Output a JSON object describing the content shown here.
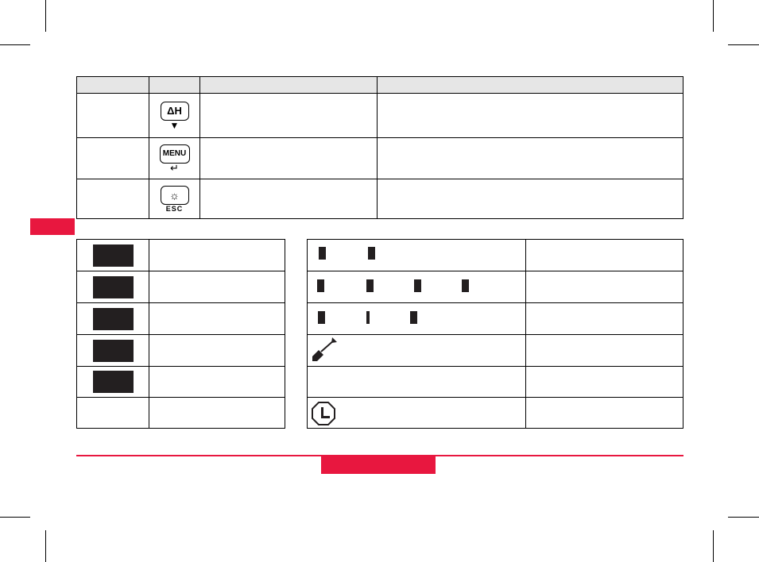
{
  "keys": {
    "delta_h": "ΔH",
    "menu": "MENU",
    "esc": "ESC"
  },
  "colors": {
    "accent": "#e8173f",
    "header": "#e6e6e6"
  }
}
